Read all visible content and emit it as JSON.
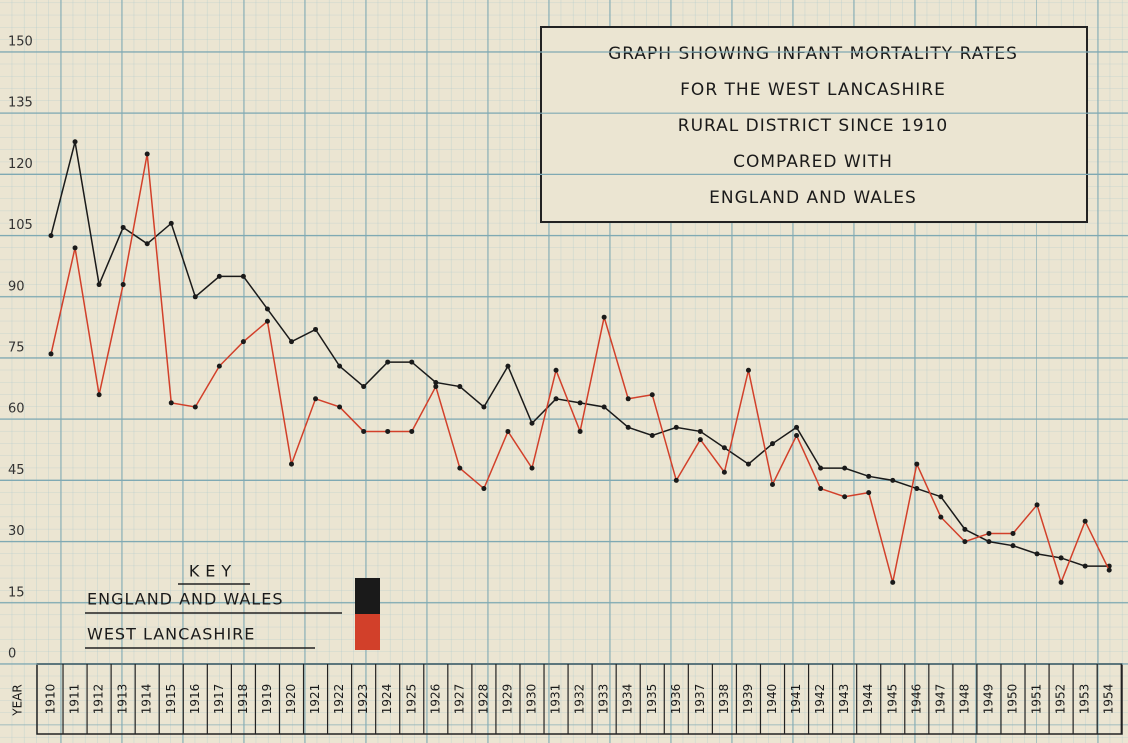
{
  "chart_data": {
    "type": "line",
    "title": [
      "GRAPH SHOWING INFANT MORTALITY RATES",
      "FOR THE WEST LANCASHIRE",
      "RURAL DISTRICT SINCE 1910",
      "COMPARED WITH",
      "ENGLAND AND WALES"
    ],
    "xlabel": "YEAR",
    "legend_title": "KEY",
    "x": [
      1910,
      1911,
      1912,
      1913,
      1914,
      1915,
      1916,
      1917,
      1918,
      1919,
      1920,
      1921,
      1922,
      1923,
      1924,
      1925,
      1926,
      1927,
      1928,
      1929,
      1930,
      1931,
      1932,
      1933,
      1934,
      1935,
      1936,
      1937,
      1938,
      1939,
      1940,
      1941,
      1942,
      1943,
      1944,
      1945,
      1946,
      1947,
      1948,
      1949,
      1950,
      1951,
      1952,
      1953,
      1954
    ],
    "series": [
      {
        "name": "ENGLAND AND WALES",
        "color": "#1a1a1a",
        "values": [
          105,
          128,
          93,
          107,
          103,
          108,
          90,
          95,
          95,
          87,
          79,
          82,
          73,
          68,
          74,
          74,
          69,
          68,
          63,
          73,
          59,
          65,
          64,
          63,
          58,
          56,
          58,
          57,
          53,
          49,
          54,
          58,
          48,
          48,
          46,
          45,
          43,
          41,
          33,
          30,
          29,
          27,
          26,
          24,
          24
        ]
      },
      {
        "name": "WEST LANCASHIRE",
        "color": "#d2402a",
        "values": [
          76,
          102,
          66,
          93,
          125,
          64,
          63,
          73,
          79,
          84,
          49,
          65,
          63,
          57,
          57,
          57,
          68,
          48,
          43,
          57,
          48,
          72,
          57,
          85,
          65,
          66,
          45,
          55,
          47,
          72,
          44,
          56,
          43,
          41,
          42,
          20,
          49,
          36,
          30,
          32,
          32,
          39,
          20,
          35,
          23
        ]
      }
    ],
    "ylim": [
      0,
      150
    ],
    "yticks": [
      0,
      15,
      30,
      45,
      60,
      75,
      90,
      105,
      120,
      135,
      150
    ],
    "grid": true
  }
}
